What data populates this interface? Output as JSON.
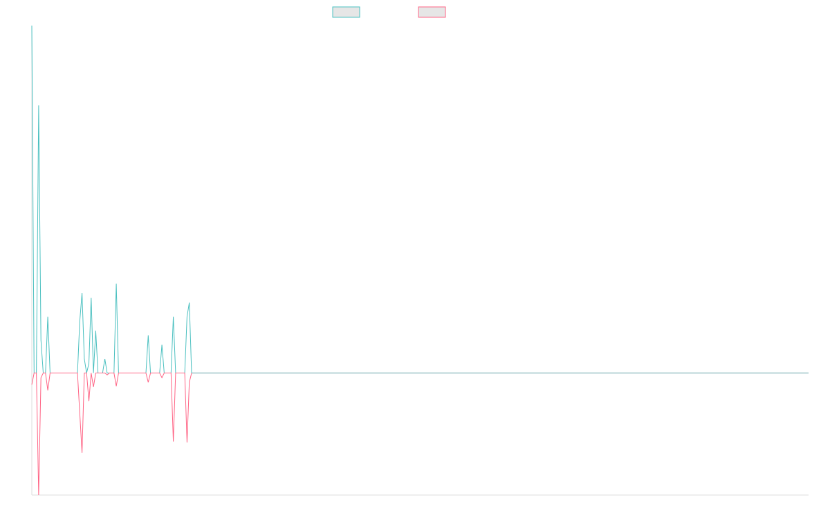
{
  "chart_data": {
    "type": "line",
    "title": "",
    "xlabel": "",
    "ylabel": "",
    "grid": false,
    "legend_position": "top-center",
    "xlim": [
      0,
      166
    ],
    "ylim": [
      -26,
      74
    ],
    "zero_line_color": "#5c9ea3",
    "series": [
      {
        "color": "#4bc0c0",
        "legend_fill": "#e6e6e6",
        "values": [
          74,
          0,
          0,
          57,
          7,
          0,
          0,
          12,
          0,
          0,
          0,
          0,
          0,
          0,
          0,
          0,
          0,
          0,
          0,
          0,
          0,
          11,
          17,
          3,
          0,
          2,
          16,
          0,
          9,
          0,
          0,
          0,
          3,
          0,
          0,
          0,
          0,
          19,
          0,
          0,
          0,
          0,
          0,
          0,
          0,
          0,
          0,
          0,
          0,
          0,
          0,
          8,
          0,
          0,
          0,
          0,
          0,
          6,
          0,
          0,
          0,
          0,
          12,
          0,
          0,
          0,
          0,
          0,
          12,
          15,
          0
        ]
      },
      {
        "color": "#ff6384",
        "legend_fill": "#e6e6e6",
        "values": [
          -2.5,
          0,
          0,
          -26,
          -1,
          0,
          0,
          -3.7,
          0,
          0,
          0,
          0,
          0,
          0,
          0,
          0,
          0,
          0,
          0,
          0,
          0,
          -8.5,
          -17,
          0,
          0,
          -6,
          0,
          -3,
          0,
          0,
          0,
          0,
          0,
          -0.4,
          0,
          0,
          0,
          -2.8,
          0,
          0,
          0,
          0,
          0,
          0,
          0,
          0,
          0,
          0,
          0,
          0,
          0,
          -2,
          0,
          0,
          0,
          0,
          0,
          -1,
          0,
          0,
          0,
          0,
          -14.6,
          0,
          0,
          0,
          0,
          0,
          -14.8,
          -2,
          0
        ]
      }
    ]
  }
}
